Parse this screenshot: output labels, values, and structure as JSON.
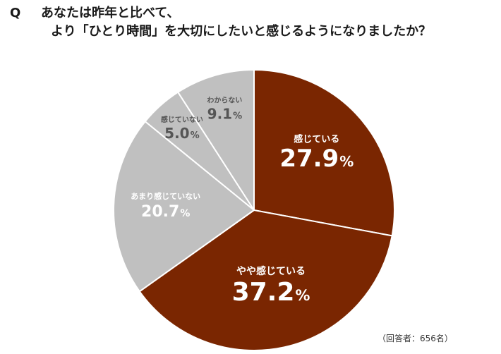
{
  "question": {
    "mark": "Q",
    "line1": "あなたは昨年と比べて、",
    "line2": "より「ひとり時間」を大切にしたいと感じるようになりましたか？"
  },
  "note": "（回答者：656名）",
  "colors": {
    "dark_slice": "#7a2601",
    "light_slice": "#c0c0c0",
    "dark_label": "#ffffff",
    "light_label": "#ffffff",
    "small_label": "#555555",
    "separator": "#ffffff"
  },
  "chart_data": {
    "type": "pie",
    "unit": "%",
    "start": "12 o'clock, clockwise",
    "slices": [
      {
        "label": "感じている",
        "value": 27.9,
        "tone": "dark"
      },
      {
        "label": "やや感じている",
        "value": 37.2,
        "tone": "dark"
      },
      {
        "label": "あまり感じていない",
        "value": 20.7,
        "tone": "light"
      },
      {
        "label": "感じていない",
        "value": 5.0,
        "tone": "light"
      },
      {
        "label": "わからない",
        "value": 9.1,
        "tone": "light"
      }
    ],
    "value_labels": [
      "27.9",
      "37.2",
      "20.7",
      "5.0",
      "9.1"
    ],
    "respondents": 656
  }
}
